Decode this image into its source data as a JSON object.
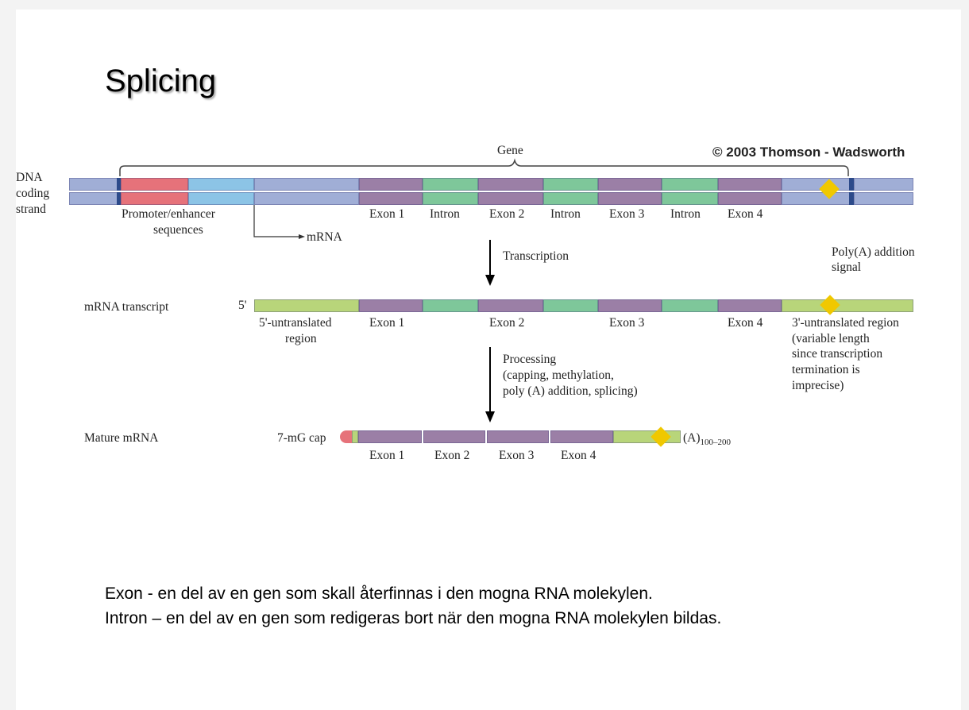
{
  "slide": {
    "title": "Splicing",
    "copyright": "© 2003 Thomson - Wadsworth",
    "notes": [
      "Exon -  en del av en gen som skall återfinnas i den mogna RNA molekylen.",
      "Intron – en del av en gen som redigeras bort när den mogna RNA molekylen bildas."
    ]
  },
  "diagram": {
    "gene_label": "Gene",
    "dna": {
      "label_lines": [
        "DNA",
        "coding",
        "strand"
      ],
      "promoter_lines": [
        "Promoter/enhancer",
        "sequences"
      ],
      "mrna_arrow": "mRNA",
      "segments": [
        "Exon 1",
        "Intron",
        "Exon 2",
        "Intron",
        "Exon 3",
        "Intron",
        "Exon 4"
      ]
    },
    "transcription": "Transcription",
    "polya_signal": [
      "Poly(A) addition",
      "signal"
    ],
    "transcript": {
      "label": "mRNA transcript",
      "five_prime": "5'",
      "utr5": [
        "5'-untranslated",
        "region"
      ],
      "exons": [
        "Exon 1",
        "Exon 2",
        "Exon 3",
        "Exon 4"
      ],
      "utr3": [
        "3'-untranslated region",
        "(variable length",
        "since transcription",
        "termination is",
        "imprecise)"
      ]
    },
    "processing": [
      "Processing",
      "(capping, methylation,",
      "poly (A) addition, splicing)"
    ],
    "mature": {
      "label": "Mature mRNA",
      "cap": "7-mG cap",
      "tail": "(A)",
      "tail_sub": "100–200",
      "exons": [
        "Exon 1",
        "Exon 2",
        "Exon 3",
        "Exon 4"
      ]
    },
    "colors": {
      "exon": "#9b7fa6",
      "intron": "#7ec79a",
      "promoter": "#e6727a",
      "enhancer": "#8cc4e6",
      "flank": "#a0aed6",
      "utr": "#b8d57a",
      "polya_signal": "#f0c800"
    }
  }
}
